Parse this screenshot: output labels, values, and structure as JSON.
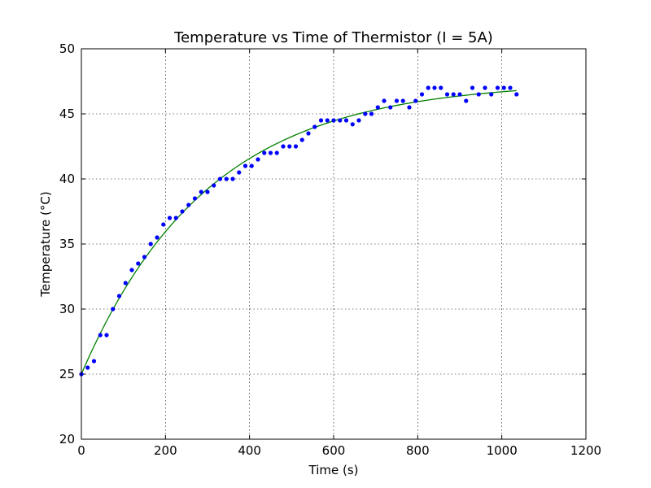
{
  "chart_data": {
    "type": "scatter",
    "title": "Temperature vs Time of Thermistor (I = 5A)",
    "xlabel": "Time (s)",
    "ylabel": "Temperature (°C)",
    "xlim": [
      0,
      1200
    ],
    "ylim": [
      20,
      50
    ],
    "xticks": [
      0,
      200,
      400,
      600,
      800,
      1000,
      1200
    ],
    "yticks": [
      20,
      25,
      30,
      35,
      40,
      45,
      50
    ],
    "xtick_labels": [
      "0",
      "200",
      "400",
      "600",
      "800",
      "1000",
      "1200"
    ],
    "ytick_labels": [
      "20",
      "25",
      "30",
      "35",
      "40",
      "45",
      "50"
    ],
    "grid": true,
    "series": [
      {
        "kind": "scatter",
        "color": "#0000ff",
        "x": [
          0,
          15,
          30,
          45,
          60,
          75,
          90,
          105,
          120,
          135,
          150,
          165,
          180,
          195,
          210,
          225,
          240,
          255,
          270,
          285,
          300,
          315,
          330,
          345,
          360,
          375,
          390,
          405,
          420,
          435,
          450,
          465,
          480,
          495,
          510,
          525,
          540,
          555,
          570,
          585,
          600,
          615,
          630,
          645,
          660,
          675,
          690,
          705,
          720,
          735,
          750,
          765,
          780,
          795,
          810,
          825,
          840,
          855,
          870,
          885,
          900,
          915,
          930,
          945,
          960,
          975,
          990,
          1005,
          1020,
          1035
        ],
        "y": [
          25,
          25.5,
          26,
          28,
          28,
          30,
          31,
          32,
          33,
          33.5,
          34,
          35,
          35.5,
          36.5,
          37,
          37,
          37.5,
          38,
          38.5,
          39,
          39,
          39.5,
          40,
          40,
          40,
          40.5,
          41,
          41,
          41.5,
          42,
          42,
          42,
          42.5,
          42.5,
          42.5,
          43,
          43.5,
          44,
          44.5,
          44.5,
          44.5,
          44.5,
          44.5,
          44.2,
          44.5,
          45,
          45,
          45.5,
          46,
          45.5,
          46,
          46,
          45.5,
          46,
          46.5,
          47,
          47,
          47,
          46.5,
          46.5,
          46.5,
          46,
          47,
          46.5,
          47,
          46.5,
          47,
          47,
          47,
          46.5
        ]
      },
      {
        "kind": "line",
        "color": "#008000",
        "model": {
          "T_start": 25,
          "T_final": 47.5,
          "tau_s": 300
        },
        "x_range": [
          0,
          1035
        ]
      }
    ]
  }
}
